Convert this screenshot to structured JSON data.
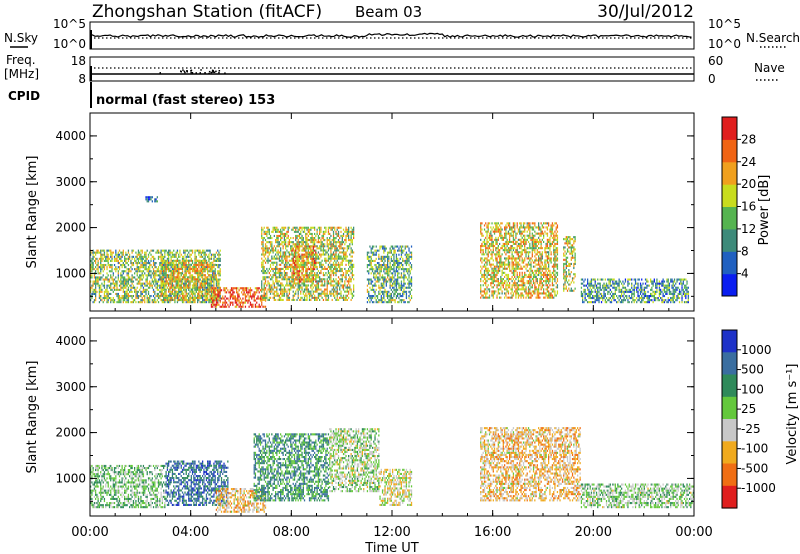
{
  "header": {
    "station": "Zhongshan Station (fitACF)",
    "beam": "Beam 03",
    "date": "30/Jul/2012"
  },
  "panels": {
    "nsky_label": "N.Sky",
    "nsearch_label": "N.Search",
    "freq_label_1": "Freq.",
    "freq_label_2": "[MHz]",
    "nave_label": "Nave",
    "cpid_label": "CPID",
    "cpid_text": "normal (fast stereo) 153",
    "noise_left_ticks": [
      "10^5",
      "10^0"
    ],
    "noise_right_ticks": [
      "10^5",
      "10^0"
    ],
    "freq_left_ticks": [
      "18",
      "8"
    ],
    "nave_right_ticks": [
      "60",
      "0"
    ]
  },
  "axes": {
    "ylabel": "Slant Range [km]",
    "xlabel": "Time UT",
    "xticks": [
      "00:00",
      "04:00",
      "08:00",
      "12:00",
      "16:00",
      "20:00",
      "00:00"
    ],
    "yticks": [
      "1000",
      "2000",
      "3000",
      "4000"
    ]
  },
  "colorbars": {
    "power": {
      "label": "Power [dB]",
      "ticks": [
        "4",
        "8",
        "12",
        "16",
        "20",
        "24",
        "28"
      ],
      "colors": [
        "#0a1ef0",
        "#2060c0",
        "#3d8a7a",
        "#55b450",
        "#c8dc1e",
        "#f0a01e",
        "#f06414",
        "#e01e1e"
      ]
    },
    "velocity": {
      "label": "Velocity [m s⁻¹]",
      "ticks": [
        "1000",
        "500",
        "100",
        "25",
        "-25",
        "-100",
        "-500",
        "-1000"
      ],
      "colors": [
        "#1e32c8",
        "#3a6ea0",
        "#2f8a5a",
        "#64c83c",
        "#c8c8c8",
        "#f0aa1e",
        "#f06e14",
        "#e01e1e"
      ]
    }
  },
  "chart_data": [
    {
      "type": "heatmap",
      "title": "Power",
      "xlabel": "Time UT",
      "ylabel": "Slant Range [km]",
      "xlim": [
        "00:00",
        "24:00"
      ],
      "ylim": [
        180,
        4500
      ],
      "color_label": "Power [dB]",
      "color_range": [
        0,
        30
      ],
      "regions": [
        {
          "t": [
            0.0,
            5.2
          ],
          "range_km": [
            350,
            1500
          ],
          "typical_db": 14
        },
        {
          "t": [
            2.8,
            5.0
          ],
          "range_km": [
            400,
            1300
          ],
          "typical_db": 18
        },
        {
          "t": [
            4.8,
            7.0
          ],
          "range_km": [
            250,
            700
          ],
          "typical_db": 26
        },
        {
          "t": [
            6.8,
            10.5
          ],
          "range_km": [
            400,
            2000
          ],
          "typical_db": 16
        },
        {
          "t": [
            8.0,
            9.0
          ],
          "range_km": [
            800,
            1600
          ],
          "typical_db": 22
        },
        {
          "t": [
            11.0,
            12.8
          ],
          "range_km": [
            350,
            1600
          ],
          "typical_db": 12
        },
        {
          "t": [
            15.5,
            18.6
          ],
          "range_km": [
            450,
            2100
          ],
          "typical_db": 18
        },
        {
          "t": [
            18.8,
            19.3
          ],
          "range_km": [
            600,
            1800
          ],
          "typical_db": 16
        },
        {
          "t": [
            19.5,
            23.8
          ],
          "range_km": [
            350,
            900
          ],
          "typical_db": 10
        },
        {
          "t": [
            2.2,
            2.7
          ],
          "range_km": [
            2550,
            2700
          ],
          "typical_db": 6
        }
      ]
    },
    {
      "type": "heatmap",
      "title": "Velocity",
      "xlabel": "Time UT",
      "ylabel": "Slant Range [km]",
      "xlim": [
        "00:00",
        "24:00"
      ],
      "ylim": [
        180,
        4500
      ],
      "color_label": "Velocity [m s⁻¹]",
      "color_range": [
        -1000,
        1000
      ],
      "regions": [
        {
          "t": [
            0.0,
            3.0
          ],
          "range_km": [
            350,
            1300
          ],
          "typical_ms": 150
        },
        {
          "t": [
            3.0,
            5.5
          ],
          "range_km": [
            400,
            1400
          ],
          "typical_ms": 600
        },
        {
          "t": [
            5.0,
            7.0
          ],
          "range_km": [
            250,
            800
          ],
          "typical_ms": -300
        },
        {
          "t": [
            6.5,
            9.5
          ],
          "range_km": [
            500,
            2000
          ],
          "typical_ms": 400
        },
        {
          "t": [
            9.5,
            11.5
          ],
          "range_km": [
            700,
            2100
          ],
          "typical_ms": 0
        },
        {
          "t": [
            11.5,
            12.8
          ],
          "range_km": [
            400,
            1200
          ],
          "typical_ms": -120
        },
        {
          "t": [
            15.5,
            19.5
          ],
          "range_km": [
            500,
            2100
          ],
          "typical_ms": -300
        },
        {
          "t": [
            19.5,
            24.0
          ],
          "range_km": [
            350,
            900
          ],
          "typical_ms": 80
        }
      ]
    }
  ]
}
